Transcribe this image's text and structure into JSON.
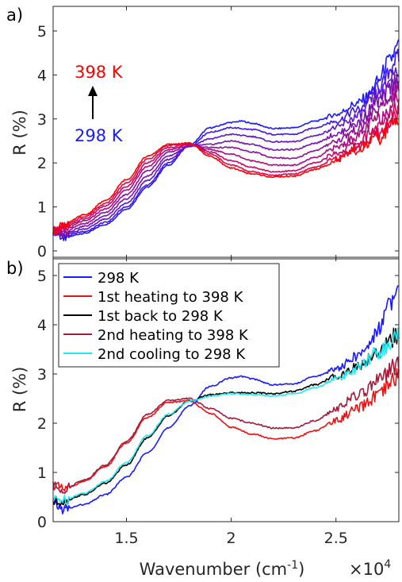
{
  "chart_data": [
    {
      "panel_label": "a)",
      "type": "line",
      "xlabel": "",
      "ylabel": "R (%)",
      "xlim": [
        11500,
        28000
      ],
      "ylim": [
        0,
        5.5
      ],
      "yticks": [
        "0",
        "1",
        "2",
        "3",
        "4",
        "5"
      ],
      "grid": false,
      "legend": "none",
      "annotations": {
        "top": "398 K",
        "bottom": "298 K",
        "top_color": "#ff0000",
        "bottom_color": "#1a1aff"
      },
      "series": [
        {
          "color": "#1a1aff",
          "x": [
            11500,
            12000,
            13000,
            14000,
            15000,
            16000,
            17000,
            18000,
            19000,
            20000,
            20500,
            21000,
            22000,
            23000,
            24000,
            25000,
            26000,
            26500,
            27000,
            27500,
            28000
          ],
          "y": [
            0.45,
            0.3,
            0.4,
            0.6,
            0.95,
            1.45,
            1.95,
            2.4,
            2.8,
            2.92,
            2.95,
            2.9,
            2.78,
            2.8,
            2.95,
            3.1,
            3.35,
            3.5,
            3.85,
            4.3,
            4.65
          ]
        },
        {
          "color": "#3f17e6",
          "x": [
            11500,
            12000,
            13000,
            14000,
            15000,
            16000,
            17000,
            18000,
            19000,
            20000,
            21000,
            22000,
            23000,
            24000,
            25000,
            26000,
            27000,
            28000
          ],
          "y": [
            0.45,
            0.33,
            0.44,
            0.65,
            1.0,
            1.5,
            2.0,
            2.38,
            2.7,
            2.8,
            2.76,
            2.65,
            2.65,
            2.8,
            2.95,
            3.2,
            3.7,
            4.4
          ]
        },
        {
          "color": "#5f14cc",
          "x": [
            11500,
            12000,
            13000,
            14000,
            15000,
            16000,
            17000,
            18000,
            19000,
            20000,
            21000,
            22000,
            23000,
            24000,
            25000,
            26000,
            27000,
            28000
          ],
          "y": [
            0.45,
            0.36,
            0.5,
            0.72,
            1.08,
            1.6,
            2.08,
            2.38,
            2.55,
            2.65,
            2.6,
            2.48,
            2.48,
            2.62,
            2.8,
            3.05,
            3.55,
            4.15
          ]
        },
        {
          "color": "#7812b3",
          "x": [
            11500,
            12000,
            13000,
            14000,
            15000,
            16000,
            17000,
            18000,
            19000,
            20000,
            21000,
            22000,
            23000,
            24000,
            25000,
            26000,
            27000,
            28000
          ],
          "y": [
            0.45,
            0.4,
            0.56,
            0.8,
            1.18,
            1.7,
            2.16,
            2.38,
            2.42,
            2.5,
            2.42,
            2.3,
            2.3,
            2.45,
            2.65,
            2.9,
            3.4,
            3.9
          ]
        },
        {
          "color": "#920f99",
          "x": [
            11500,
            12000,
            13000,
            14000,
            15000,
            16000,
            17000,
            18000,
            19000,
            20000,
            21000,
            22000,
            23000,
            24000,
            25000,
            26000,
            27000,
            28000
          ],
          "y": [
            0.45,
            0.44,
            0.62,
            0.88,
            1.28,
            1.82,
            2.24,
            2.4,
            2.35,
            2.35,
            2.25,
            2.12,
            2.1,
            2.28,
            2.5,
            2.75,
            3.2,
            3.7
          ]
        },
        {
          "color": "#ab0c80",
          "x": [
            11500,
            12000,
            13000,
            14000,
            15000,
            16000,
            17000,
            18000,
            19000,
            20000,
            21000,
            22000,
            23000,
            24000,
            25000,
            26000,
            27000,
            28000
          ],
          "y": [
            0.45,
            0.48,
            0.68,
            0.95,
            1.38,
            1.92,
            2.3,
            2.42,
            2.3,
            2.2,
            2.05,
            1.95,
            1.95,
            2.12,
            2.35,
            2.6,
            3.0,
            3.5
          ]
        },
        {
          "color": "#c50966",
          "x": [
            11500,
            12000,
            13000,
            14000,
            15000,
            16000,
            17000,
            18000,
            19000,
            20000,
            21000,
            22000,
            23000,
            24000,
            25000,
            26000,
            27000,
            28000
          ],
          "y": [
            0.45,
            0.52,
            0.73,
            1.02,
            1.46,
            2.0,
            2.35,
            2.43,
            2.25,
            2.05,
            1.9,
            1.8,
            1.82,
            2.0,
            2.22,
            2.45,
            2.8,
            3.3
          ]
        },
        {
          "color": "#de064d",
          "x": [
            11500,
            12000,
            13000,
            14000,
            15000,
            16000,
            17000,
            18000,
            19000,
            20000,
            21000,
            22000,
            23000,
            24000,
            25000,
            26000,
            27000,
            28000
          ],
          "y": [
            0.45,
            0.56,
            0.78,
            1.08,
            1.54,
            2.08,
            2.4,
            2.44,
            2.2,
            1.95,
            1.8,
            1.72,
            1.75,
            1.9,
            2.1,
            2.35,
            2.65,
            3.1
          ]
        },
        {
          "color": "#ff0000",
          "x": [
            11500,
            12000,
            13000,
            14000,
            15000,
            16000,
            17000,
            18000,
            19000,
            20000,
            21000,
            22000,
            23000,
            24000,
            25000,
            26000,
            27000,
            28000
          ],
          "y": [
            0.45,
            0.6,
            0.82,
            1.14,
            1.62,
            2.15,
            2.42,
            2.45,
            2.15,
            1.88,
            1.75,
            1.68,
            1.7,
            1.85,
            2.05,
            2.28,
            2.55,
            3.0
          ]
        }
      ]
    },
    {
      "panel_label": "b)",
      "type": "line",
      "xlabel": "Wavenumber (cm",
      "xlabel_sup": "-1",
      "xlabel_tail": ")",
      "x_multiplier": "×10",
      "x_multiplier_exp": "4",
      "ylabel": "R (%)",
      "xlim": [
        11500,
        28000
      ],
      "ylim": [
        0,
        5.5
      ],
      "xticks": [
        {
          "value": 15000,
          "label": "1.5"
        },
        {
          "value": 20000,
          "label": "2"
        },
        {
          "value": 25000,
          "label": "2.5"
        }
      ],
      "yticks": [
        "0",
        "1",
        "2",
        "3",
        "4",
        "5"
      ],
      "grid": false,
      "legend": "top-left",
      "series": [
        {
          "name": "298 K",
          "color": "#1a1aff",
          "x": [
            11500,
            12000,
            13000,
            14000,
            15000,
            16000,
            17000,
            18000,
            19000,
            20000,
            20500,
            21000,
            22000,
            23000,
            24000,
            25000,
            26000,
            26500,
            27000,
            27500,
            28000
          ],
          "y": [
            0.35,
            0.25,
            0.35,
            0.55,
            0.9,
            1.4,
            1.9,
            2.35,
            2.75,
            2.92,
            2.95,
            2.9,
            2.78,
            2.8,
            2.95,
            3.1,
            3.35,
            3.55,
            3.9,
            4.4,
            4.65
          ]
        },
        {
          "name": "1st heating to 398 K",
          "color": "#ee1111",
          "x": [
            11500,
            12000,
            13000,
            14000,
            15000,
            16000,
            17000,
            18000,
            19000,
            20000,
            21000,
            22000,
            23000,
            24000,
            25000,
            26000,
            27000,
            28000
          ],
          "y": [
            0.75,
            0.65,
            0.82,
            1.12,
            1.6,
            2.12,
            2.42,
            2.46,
            2.2,
            1.92,
            1.78,
            1.68,
            1.7,
            1.85,
            2.05,
            2.28,
            2.55,
            2.95
          ]
        },
        {
          "name": "1st back to 298 K",
          "color": "#000000",
          "x": [
            11500,
            12000,
            13000,
            14000,
            15000,
            16000,
            17000,
            18000,
            19000,
            20000,
            21000,
            22000,
            23000,
            24000,
            25000,
            26000,
            27000,
            28000
          ],
          "y": [
            0.4,
            0.42,
            0.55,
            0.78,
            1.15,
            1.7,
            2.15,
            2.45,
            2.58,
            2.62,
            2.62,
            2.6,
            2.65,
            2.78,
            2.95,
            3.15,
            3.45,
            3.8
          ]
        },
        {
          "name": "2nd heating to 398 K",
          "color": "#a51c3b",
          "x": [
            11500,
            12000,
            13000,
            14000,
            15000,
            16000,
            17000,
            18000,
            19000,
            20000,
            21000,
            22000,
            23000,
            24000,
            25000,
            26000,
            27000,
            28000
          ],
          "y": [
            0.72,
            0.66,
            0.85,
            1.15,
            1.63,
            2.18,
            2.46,
            2.5,
            2.3,
            2.1,
            2.0,
            1.9,
            1.9,
            2.05,
            2.3,
            2.55,
            2.85,
            3.2
          ]
        },
        {
          "name": "2nd cooling to 298 K",
          "color": "#22e8ee",
          "x": [
            11500,
            12000,
            13000,
            14000,
            15000,
            16000,
            17000,
            18000,
            19000,
            20000,
            21000,
            22000,
            23000,
            24000,
            25000,
            26000,
            27000,
            28000
          ],
          "y": [
            0.45,
            0.45,
            0.58,
            0.82,
            1.2,
            1.75,
            2.18,
            2.45,
            2.55,
            2.6,
            2.58,
            2.55,
            2.6,
            2.72,
            2.9,
            3.1,
            3.45,
            3.75
          ]
        }
      ]
    }
  ]
}
